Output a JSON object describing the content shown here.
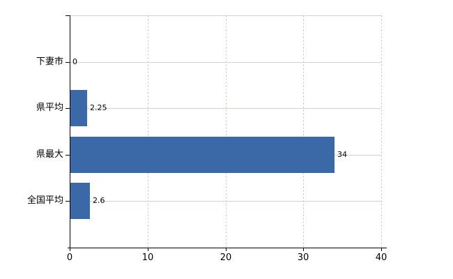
{
  "chart_data": {
    "type": "bar",
    "orientation": "horizontal",
    "title": "",
    "xlabel": "",
    "ylabel": "",
    "categories": [
      "下妻市",
      "県平均",
      "県最大",
      "全国平均"
    ],
    "values": [
      0,
      2.25,
      34,
      2.6
    ],
    "value_labels": [
      "0",
      "2.25",
      "34",
      "2.6"
    ],
    "x_ticks": [
      0,
      10,
      20,
      30,
      40
    ],
    "x_tick_labels": [
      "0",
      "10",
      "20",
      "30",
      "40"
    ],
    "xlim": [
      0,
      40
    ],
    "grid": true,
    "legend": false,
    "colors": {
      "bar": "#3b68a6",
      "gridline": "#ccd6cc",
      "axis": "#000000",
      "text": "#000000",
      "background": "#ffffff"
    }
  }
}
